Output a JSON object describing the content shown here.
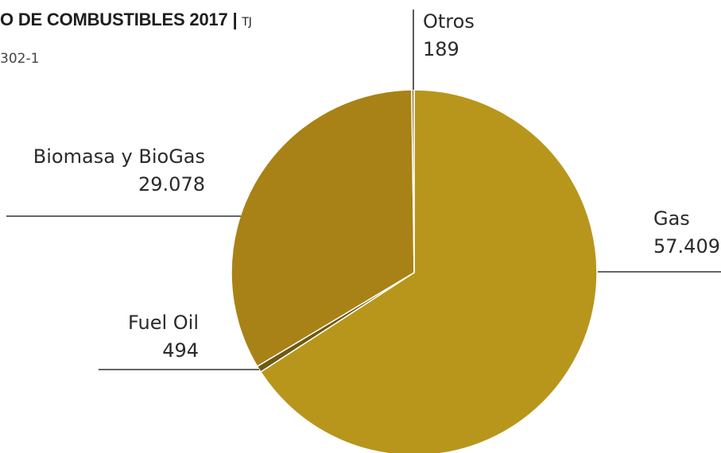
{
  "header": {
    "title": "O DE COMBUSTIBLES 2017",
    "separator": "|",
    "unit": "TJ",
    "code": "302-1"
  },
  "chart_data": {
    "type": "pie",
    "title": "O DE COMBUSTIBLES 2017",
    "unit": "TJ",
    "slices": [
      {
        "label": "Gas",
        "value": 57409,
        "display": "57.409",
        "color": "#B8961C"
      },
      {
        "label": "Fuel Oil",
        "value": 494,
        "display": "494",
        "color": "#6E5914"
      },
      {
        "label": "Biomasa y BioGas",
        "value": 29078,
        "display": "29.078",
        "color": "#A88216"
      },
      {
        "label": "Otros",
        "value": 189,
        "display": "189",
        "color": "#8A7A3A"
      }
    ],
    "start_label": "Gas",
    "direction": "clockwise",
    "legend": "none",
    "separator_color": "#ffffff",
    "leader_color": "#333333"
  }
}
